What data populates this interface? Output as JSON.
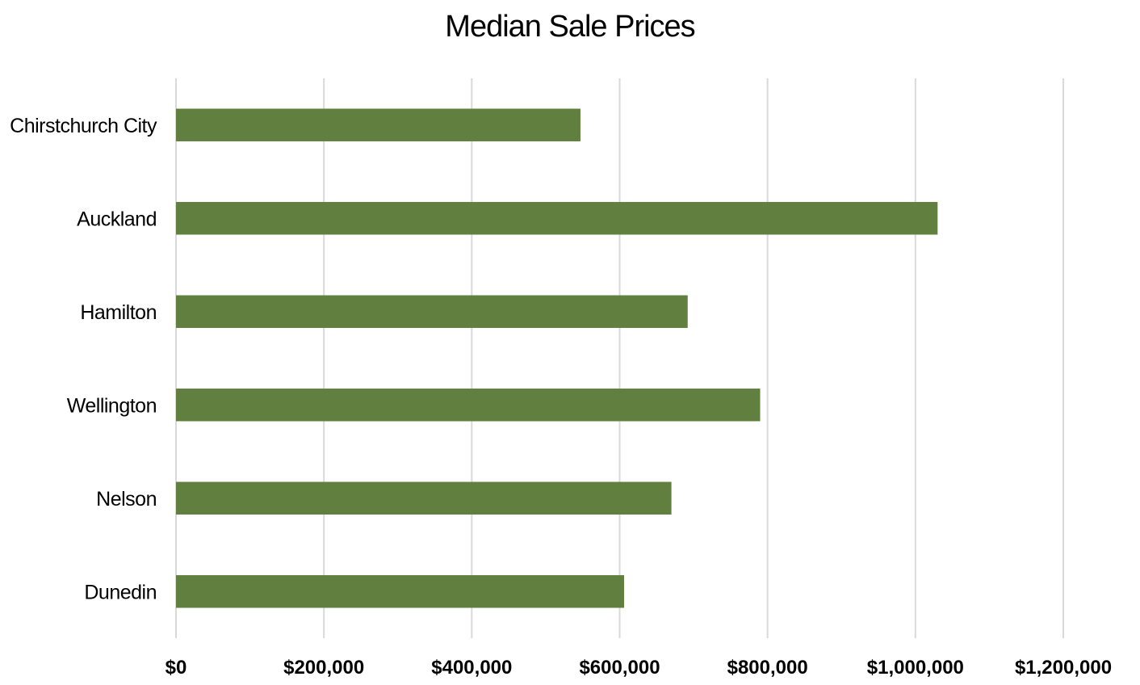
{
  "chart_data": {
    "type": "bar",
    "orientation": "horizontal",
    "title": "Median Sale Prices",
    "xlabel": "",
    "ylabel": "",
    "categories": [
      "Chirstchurch City",
      "Auckland",
      "Hamilton",
      "Wellington",
      "Nelson",
      "Dunedin"
    ],
    "values": [
      547000,
      1030000,
      692000,
      790000,
      670000,
      606000
    ],
    "xlim": [
      0,
      1200000
    ],
    "ticks": [
      0,
      200000,
      400000,
      600000,
      800000,
      1000000,
      1200000
    ],
    "tick_labels": [
      "$0",
      "$200,000",
      "$400,000",
      "$600,000",
      "$800,000",
      "$1,000,000",
      "$1,200,000"
    ],
    "grid": "vertical",
    "legend": "none",
    "bar_color": "#617f3f",
    "grid_color": "#d9d9d9"
  }
}
